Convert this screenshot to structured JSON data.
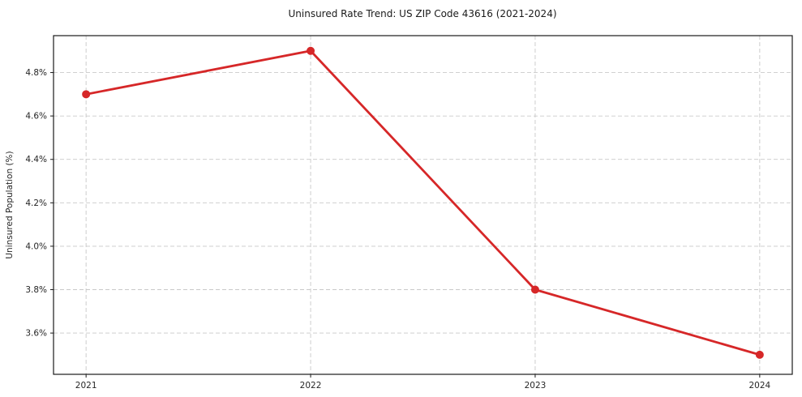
{
  "chart_data": {
    "type": "line",
    "title": "Uninsured Rate Trend: US ZIP Code 43616 (2021-2024)",
    "xlabel": "",
    "ylabel": "Uninsured Population (%)",
    "x": [
      2021,
      2022,
      2023,
      2024
    ],
    "series": [
      {
        "name": "Uninsured rate",
        "values": [
          4.7,
          4.9,
          3.8,
          3.5
        ]
      }
    ],
    "xticklabels": [
      "2021",
      "2022",
      "2023",
      "2024"
    ],
    "yticks": [
      3.6,
      3.8,
      4.0,
      4.2,
      4.4,
      4.6,
      4.8
    ],
    "yticklabels": [
      "3.6%",
      "3.8%",
      "4.0%",
      "4.2%",
      "4.4%",
      "4.6%",
      "4.8%"
    ],
    "xlim": [
      2020.855,
      2024.145
    ],
    "ylim": [
      3.41,
      4.97
    ],
    "grid": true,
    "grid_style": "dashed",
    "legend": "none",
    "marker": "circle",
    "line_color": "#d62728",
    "grid_color": "#c9c9c9",
    "axis_color": "#1a1a1a",
    "text_color": "#262626"
  }
}
